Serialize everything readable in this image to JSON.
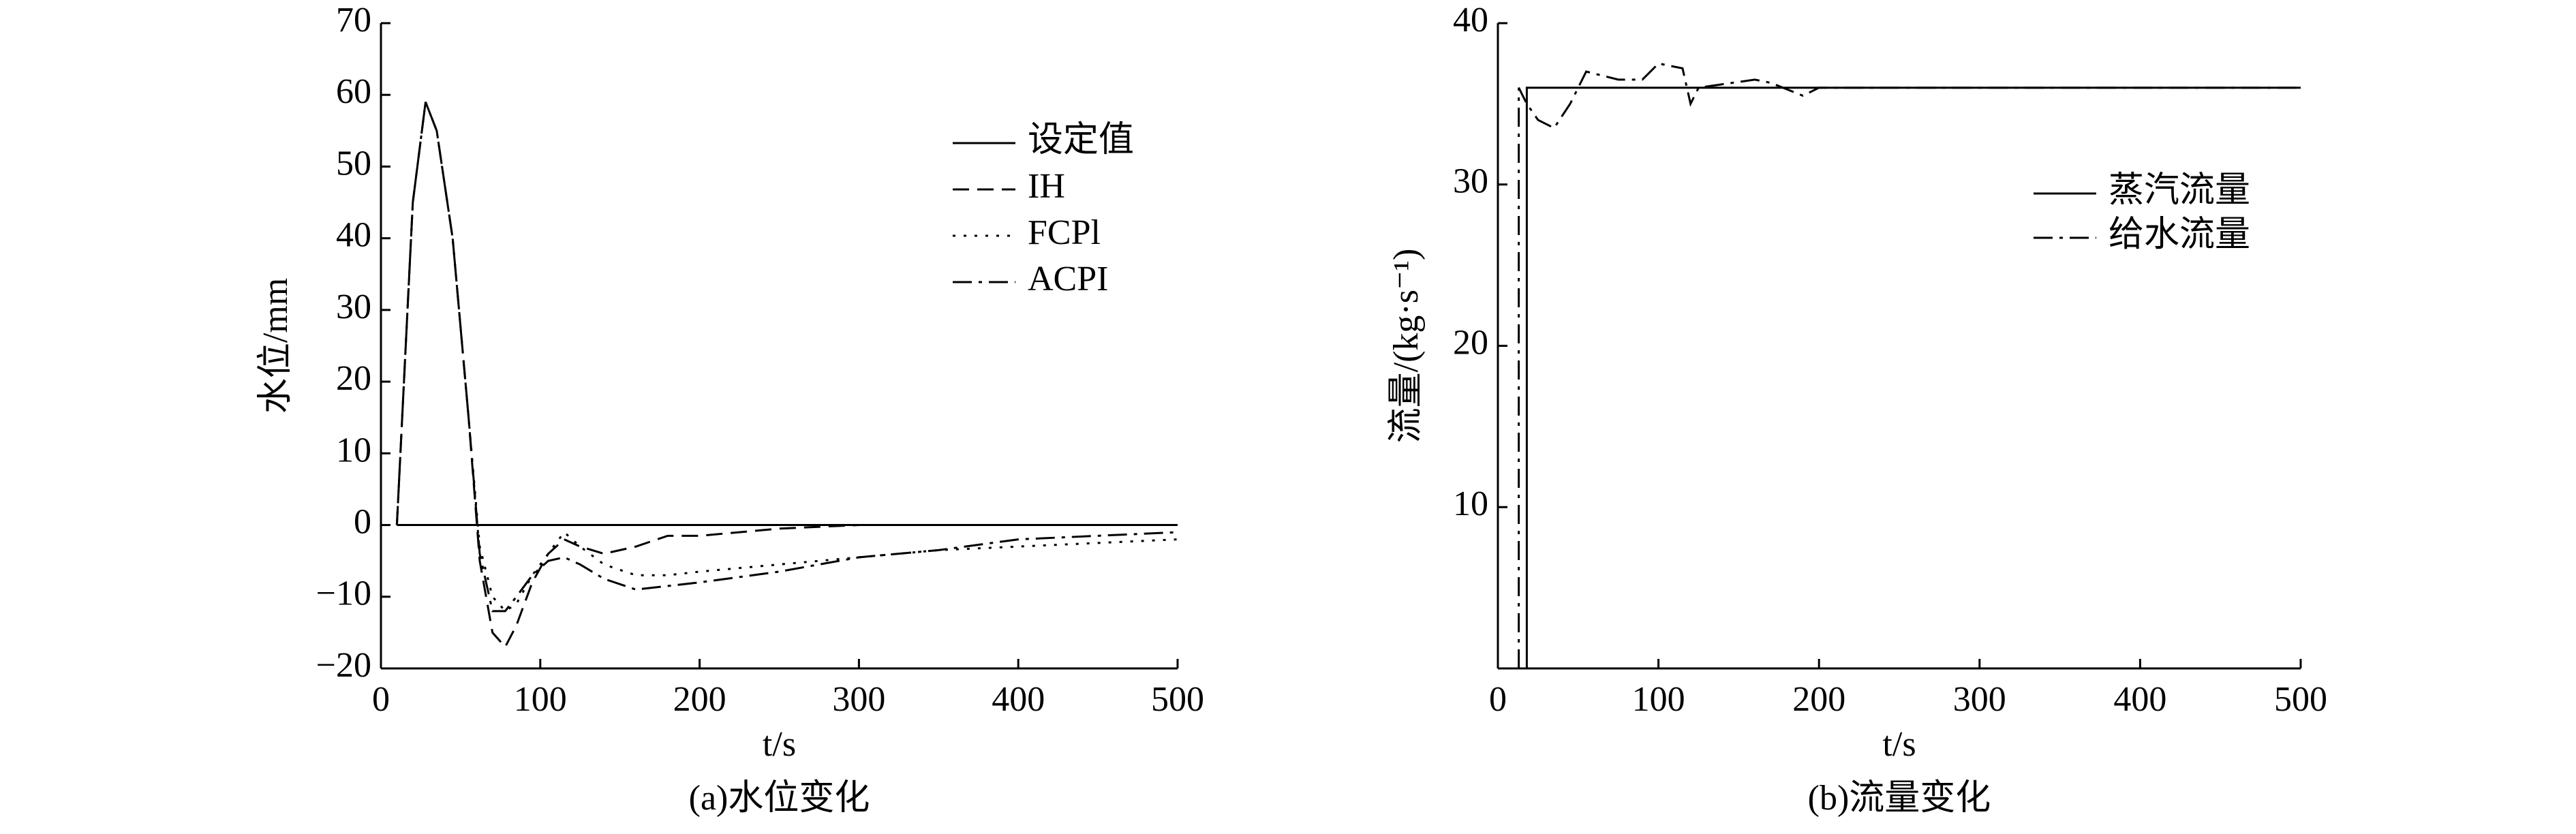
{
  "chart_data": [
    {
      "type": "line",
      "title": "(a)水位变化",
      "xlabel": "t/s",
      "ylabel": "水位/mm",
      "xlim": [
        0,
        500
      ],
      "xticks": [
        0,
        100,
        200,
        300,
        400,
        500
      ],
      "ylim": [
        -20,
        70
      ],
      "yticks": [
        {
          "value": -20,
          "label": "−20"
        },
        {
          "value": -10,
          "label": "−10"
        },
        0,
        10,
        20,
        30,
        40,
        50,
        60,
        70
      ],
      "legend": "upper right",
      "series": [
        {
          "name": "设定值",
          "color": "#000000",
          "linestyle": "solid",
          "x": [
            10,
            500
          ],
          "values": [
            0,
            0
          ]
        },
        {
          "name": "IH",
          "color": "#000000",
          "linestyle": "dashed",
          "x": [
            10,
            20,
            28,
            35,
            45,
            55,
            62,
            70,
            78,
            85,
            95,
            105,
            115,
            125,
            140,
            160,
            180,
            200,
            250,
            300,
            350,
            400,
            450,
            500
          ],
          "values": [
            0,
            45,
            59,
            55,
            40,
            15,
            -5,
            -15,
            -17,
            -14,
            -8,
            -4,
            -2,
            -3,
            -4,
            -3,
            -1.5,
            -1.5,
            -0.5,
            0,
            0,
            0,
            0,
            0
          ]
        },
        {
          "name": "FCPl",
          "color": "#000000",
          "linestyle": "dotted",
          "x": [
            10,
            20,
            28,
            35,
            45,
            55,
            62,
            70,
            78,
            85,
            95,
            105,
            115,
            125,
            140,
            160,
            180,
            200,
            250,
            300,
            350,
            400,
            450,
            500
          ],
          "values": [
            0,
            45,
            59,
            55,
            40,
            15,
            -3,
            -10,
            -12,
            -11,
            -7,
            -4,
            -1,
            -3,
            -5.5,
            -7,
            -7,
            -6.5,
            -5.5,
            -4.5,
            -3.5,
            -3,
            -2.5,
            -2
          ]
        },
        {
          "name": "ACPI",
          "color": "#000000",
          "linestyle": "dashdot",
          "x": [
            10,
            20,
            28,
            35,
            45,
            55,
            62,
            70,
            78,
            85,
            95,
            105,
            115,
            125,
            140,
            160,
            180,
            200,
            250,
            300,
            350,
            400,
            450,
            500
          ],
          "values": [
            0,
            45,
            59,
            55,
            40,
            15,
            -4,
            -12,
            -12,
            -10,
            -7,
            -5,
            -4.5,
            -5.5,
            -7.5,
            -9,
            -8.5,
            -8,
            -6.5,
            -4.5,
            -3.5,
            -2,
            -1.5,
            -1
          ]
        }
      ]
    },
    {
      "type": "line",
      "title": "(b)流量变化",
      "xlabel": "t/s",
      "ylabel": "流量/(kg·s⁻¹)",
      "xlim": [
        0,
        500
      ],
      "xticks": [
        0,
        100,
        200,
        300,
        400,
        500
      ],
      "ylim": [
        0,
        40
      ],
      "yticks": [
        10,
        20,
        30,
        40
      ],
      "legend": "upper right",
      "series": [
        {
          "name": "蒸汽流量",
          "color": "#000000",
          "linestyle": "solid",
          "x": [
            18,
            18,
            500
          ],
          "values": [
            0,
            36,
            36
          ]
        },
        {
          "name": "给水流量",
          "color": "#000000",
          "linestyle": "dashdot",
          "x": [
            13,
            13,
            18,
            25,
            35,
            45,
            55,
            75,
            90,
            100,
            115,
            120,
            125,
            160,
            170,
            190,
            200,
            240,
            500
          ],
          "values": [
            0,
            36,
            35,
            34,
            33.5,
            35,
            37,
            36.5,
            36.5,
            37.5,
            37.2,
            35,
            36,
            36.5,
            36.3,
            35.5,
            36,
            36,
            36
          ]
        }
      ]
    }
  ]
}
